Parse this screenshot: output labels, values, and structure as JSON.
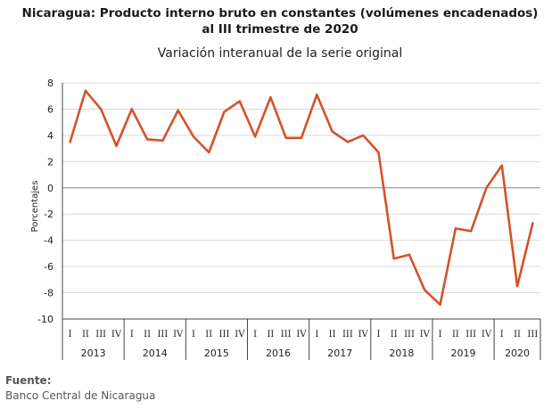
{
  "title_line1": "Nicaragua: Producto interno bruto en constantes (volúmenes encadenados)",
  "title_line2": "al III trimestre de 2020",
  "subtitle": "Variación interanual de la serie original",
  "source_label": "Fuente:",
  "source_text": "Banco Central de Nicaragua",
  "colors": {
    "line": "#d4522a",
    "grid": "#d9d9d9",
    "axis": "#444444"
  },
  "chart_data": {
    "type": "line",
    "title": "Nicaragua: Producto interno bruto en constantes (volúmenes encadenados) al III trimestre de 2020",
    "subtitle": "Variación interanual de la serie original",
    "xlabel": "",
    "ylabel": "Porcentajes",
    "ylim": [
      -10,
      8
    ],
    "yticks": [
      8,
      6,
      4,
      2,
      0,
      -2,
      -4,
      -6,
      -8,
      -10
    ],
    "grid": true,
    "legend": "none",
    "x": [
      "2013-I",
      "2013-II",
      "2013-III",
      "2013-IV",
      "2014-I",
      "2014-II",
      "2014-III",
      "2014-IV",
      "2015-I",
      "2015-II",
      "2015-III",
      "2015-IV",
      "2016-I",
      "2016-II",
      "2016-III",
      "2016-IV",
      "2017-I",
      "2017-II",
      "2017-III",
      "2017-IV",
      "2018-I",
      "2018-II",
      "2018-III",
      "2018-IV",
      "2019-I",
      "2019-II",
      "2019-III",
      "2019-IV",
      "2020-I",
      "2020-II",
      "2020-III"
    ],
    "quarter_labels": [
      "I",
      "II",
      "III",
      "IV",
      "I",
      "II",
      "III",
      "IV",
      "I",
      "II",
      "III",
      "IV",
      "I",
      "II",
      "III",
      "IV",
      "I",
      "II",
      "III",
      "IV",
      "I",
      "II",
      "III",
      "IV",
      "I",
      "II",
      "III",
      "IV",
      "I",
      "II",
      "III"
    ],
    "years": [
      "2013",
      "2014",
      "2015",
      "2016",
      "2017",
      "2018",
      "2019",
      "2020"
    ],
    "series": [
      {
        "values": [
          3.5,
          7.4,
          6.0,
          3.2,
          6.0,
          3.7,
          3.6,
          5.9,
          3.9,
          2.7,
          5.8,
          6.6,
          3.9,
          6.9,
          3.8,
          3.8,
          7.1,
          4.3,
          3.5,
          4.0,
          2.7,
          -5.4,
          -5.1,
          -7.8,
          -8.9,
          -3.1,
          -3.3,
          0.0,
          1.7,
          -7.5,
          -2.7
        ]
      }
    ]
  }
}
